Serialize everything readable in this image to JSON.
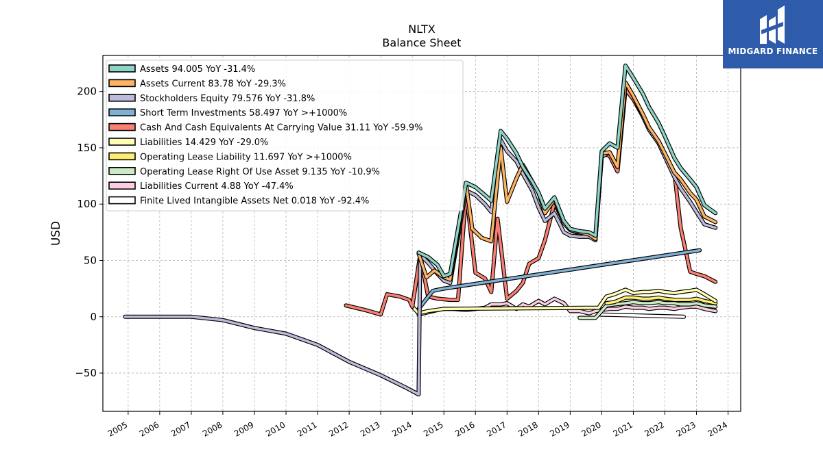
{
  "title_line1": "NLTX",
  "title_line2": "Balance  Sheet",
  "brand": {
    "name": "MIDGARD FINANCE",
    "icon": "midgard-logo-icon",
    "background": "#2f5bab"
  },
  "chart_data": {
    "type": "line",
    "title": "NLTX Balance Sheet",
    "ylabel": "USD",
    "xlabel": "",
    "ylim": [
      -84,
      232
    ],
    "xlim": [
      2004.2,
      2024.4
    ],
    "grid": true,
    "legend_position": "top-left",
    "x_ticks": [
      "2005",
      "2006",
      "2007",
      "2008",
      "2009",
      "2010",
      "2011",
      "2012",
      "2013",
      "2014",
      "2015",
      "2016",
      "2017",
      "2018",
      "2019",
      "2020",
      "2021",
      "2022",
      "2023",
      "2024"
    ],
    "y_ticks": [
      -50,
      0,
      50,
      100,
      150,
      200
    ],
    "y_tick_labels": [
      "−50",
      "0",
      "50",
      "100",
      "150",
      "200"
    ],
    "series": [
      {
        "name": "Assets",
        "legend": "Assets  94.005 YoY -31.4%",
        "color": "#8dd3c7",
        "points": [
          [
            2014.2,
            57
          ],
          [
            2014.5,
            53
          ],
          [
            2014.8,
            46
          ],
          [
            2015.0,
            36
          ],
          [
            2015.2,
            38
          ],
          [
            2015.7,
            119
          ],
          [
            2016.0,
            115
          ],
          [
            2016.3,
            108
          ],
          [
            2016.5,
            103
          ],
          [
            2016.8,
            165
          ],
          [
            2017.0,
            158
          ],
          [
            2017.3,
            145
          ],
          [
            2017.5,
            133
          ],
          [
            2017.8,
            120
          ],
          [
            2018.0,
            110
          ],
          [
            2018.2,
            96
          ],
          [
            2018.5,
            106
          ],
          [
            2018.8,
            85
          ],
          [
            2019.0,
            78
          ],
          [
            2019.3,
            76
          ],
          [
            2019.6,
            75
          ],
          [
            2019.8,
            72
          ],
          [
            2020.0,
            147
          ],
          [
            2020.25,
            154
          ],
          [
            2020.5,
            150
          ],
          [
            2020.75,
            223
          ],
          [
            2021.0,
            212
          ],
          [
            2021.3,
            198
          ],
          [
            2021.5,
            186
          ],
          [
            2021.8,
            172
          ],
          [
            2022.0,
            160
          ],
          [
            2022.3,
            141
          ],
          [
            2022.5,
            132
          ],
          [
            2022.8,
            122
          ],
          [
            2023.0,
            115
          ],
          [
            2023.25,
            99
          ],
          [
            2023.6,
            92
          ]
        ]
      },
      {
        "name": "Assets Current",
        "legend": "Assets Current  83.78 YoY -29.3%",
        "color": "#fdb462",
        "points": [
          [
            2014.2,
            56
          ],
          [
            2014.45,
            35
          ],
          [
            2014.7,
            41
          ],
          [
            2015.0,
            35
          ],
          [
            2015.2,
            33
          ],
          [
            2015.7,
            118
          ],
          [
            2015.9,
            78
          ],
          [
            2016.2,
            70
          ],
          [
            2016.5,
            67
          ],
          [
            2016.8,
            150
          ],
          [
            2017.0,
            102
          ],
          [
            2017.3,
            123
          ],
          [
            2017.5,
            135
          ],
          [
            2017.8,
            120
          ],
          [
            2018.0,
            110
          ],
          [
            2018.2,
            92
          ],
          [
            2018.5,
            104
          ],
          [
            2018.8,
            83
          ],
          [
            2019.0,
            77
          ],
          [
            2019.3,
            75
          ],
          [
            2019.6,
            73
          ],
          [
            2019.8,
            69
          ],
          [
            2020.0,
            145
          ],
          [
            2020.25,
            146
          ],
          [
            2020.5,
            133
          ],
          [
            2020.75,
            208
          ],
          [
            2021.0,
            196
          ],
          [
            2021.3,
            180
          ],
          [
            2021.5,
            168
          ],
          [
            2021.8,
            156
          ],
          [
            2022.0,
            145
          ],
          [
            2022.3,
            128
          ],
          [
            2022.5,
            122
          ],
          [
            2022.8,
            110
          ],
          [
            2023.0,
            104
          ],
          [
            2023.25,
            89
          ],
          [
            2023.6,
            84
          ]
        ]
      },
      {
        "name": "Stockholders Equity",
        "legend": "Stockholders Equity  79.576 YoY -31.8%",
        "color": "#bebada",
        "points": [
          [
            2004.9,
            0
          ],
          [
            2006.0,
            0
          ],
          [
            2007.0,
            0
          ],
          [
            2008.0,
            -3
          ],
          [
            2009.0,
            -10
          ],
          [
            2010.0,
            -15
          ],
          [
            2011.0,
            -25
          ],
          [
            2012.0,
            -40
          ],
          [
            2013.0,
            -52
          ],
          [
            2013.8,
            -63
          ],
          [
            2014.2,
            -69
          ],
          [
            2014.25,
            55
          ],
          [
            2014.5,
            48
          ],
          [
            2014.8,
            38
          ],
          [
            2015.0,
            32
          ],
          [
            2015.2,
            30
          ],
          [
            2015.7,
            112
          ],
          [
            2016.0,
            108
          ],
          [
            2016.3,
            100
          ],
          [
            2016.5,
            93
          ],
          [
            2016.8,
            157
          ],
          [
            2017.0,
            147
          ],
          [
            2017.3,
            138
          ],
          [
            2017.5,
            127
          ],
          [
            2017.8,
            112
          ],
          [
            2018.0,
            97
          ],
          [
            2018.2,
            85
          ],
          [
            2018.5,
            92
          ],
          [
            2018.8,
            75
          ],
          [
            2019.0,
            72
          ],
          [
            2019.3,
            71
          ],
          [
            2019.6,
            71
          ],
          [
            2019.8,
            68
          ],
          [
            2020.0,
            142
          ],
          [
            2020.25,
            146
          ],
          [
            2020.5,
            133
          ],
          [
            2020.75,
            208
          ],
          [
            2021.0,
            196
          ],
          [
            2021.3,
            178
          ],
          [
            2021.5,
            166
          ],
          [
            2021.8,
            154
          ],
          [
            2022.0,
            142
          ],
          [
            2022.3,
            124
          ],
          [
            2022.5,
            114
          ],
          [
            2022.8,
            102
          ],
          [
            2023.0,
            93
          ],
          [
            2023.25,
            82
          ],
          [
            2023.6,
            79
          ]
        ]
      },
      {
        "name": "Short Term Investments",
        "legend": "Short Term Investments  58.497 YoY >+1000%",
        "color": "#80b1d3",
        "points": [
          [
            2014.2,
            7
          ],
          [
            2014.65,
            23
          ],
          [
            2015.0,
            25
          ],
          [
            2023.1,
            59
          ]
        ]
      },
      {
        "name": "Cash And Cash Equivalents At Carrying Value",
        "legend": "Cash And Cash Equivalents At Carrying Value  31.11 YoY -59.9%",
        "color": "#fb8072",
        "points": [
          [
            2011.9,
            10
          ],
          [
            2012.5,
            6
          ],
          [
            2013.0,
            2
          ],
          [
            2013.2,
            20
          ],
          [
            2013.6,
            18
          ],
          [
            2013.9,
            15
          ],
          [
            2014.0,
            9
          ],
          [
            2014.25,
            55
          ],
          [
            2014.5,
            18
          ],
          [
            2014.8,
            16
          ],
          [
            2015.2,
            15
          ],
          [
            2015.45,
            15
          ],
          [
            2015.7,
            111
          ],
          [
            2016.0,
            39
          ],
          [
            2016.3,
            34
          ],
          [
            2016.5,
            22
          ],
          [
            2016.7,
            87
          ],
          [
            2017.0,
            16
          ],
          [
            2017.3,
            23
          ],
          [
            2017.5,
            30
          ],
          [
            2017.7,
            47
          ],
          [
            2018.0,
            52
          ],
          [
            2018.2,
            68
          ],
          [
            2018.5,
            101
          ],
          [
            2018.8,
            84
          ],
          [
            2019.0,
            77
          ],
          [
            2019.3,
            74
          ],
          [
            2019.6,
            72
          ],
          [
            2019.8,
            68
          ],
          [
            2020.0,
            145
          ],
          [
            2020.25,
            143
          ],
          [
            2020.5,
            129
          ],
          [
            2020.75,
            202
          ],
          [
            2021.0,
            193
          ],
          [
            2021.3,
            178
          ],
          [
            2021.5,
            166
          ],
          [
            2021.8,
            156
          ],
          [
            2022.0,
            143
          ],
          [
            2022.3,
            128
          ],
          [
            2022.5,
            79
          ],
          [
            2022.8,
            40
          ],
          [
            2023.0,
            38
          ],
          [
            2023.25,
            36
          ],
          [
            2023.6,
            31
          ]
        ]
      },
      {
        "name": "Liabilities",
        "legend": "Liabilities  14.429 YoY -29.0%",
        "color": "#ffffb3",
        "points": [
          [
            2014.0,
            9
          ],
          [
            2014.2,
            3
          ],
          [
            2014.5,
            5
          ],
          [
            2015.0,
            7
          ],
          [
            2019.9,
            8
          ],
          [
            2020.15,
            18
          ],
          [
            2020.4,
            20
          ],
          [
            2020.75,
            24
          ],
          [
            2021.0,
            21
          ],
          [
            2021.3,
            22
          ],
          [
            2021.5,
            22
          ],
          [
            2021.8,
            23
          ],
          [
            2022.0,
            22
          ],
          [
            2022.3,
            21
          ],
          [
            2022.5,
            22
          ],
          [
            2022.8,
            23
          ],
          [
            2023.0,
            24
          ],
          [
            2023.25,
            20
          ],
          [
            2023.6,
            14
          ]
        ]
      },
      {
        "name": "Operating Lease Liability",
        "legend": "Operating Lease Liability  11.697 YoY >+1000%",
        "color": "#ffed6f",
        "points": [
          [
            2020.15,
            12
          ],
          [
            2020.4,
            13
          ],
          [
            2020.75,
            17
          ],
          [
            2021.0,
            17
          ],
          [
            2021.3,
            16
          ],
          [
            2021.5,
            16
          ],
          [
            2021.8,
            17
          ],
          [
            2022.0,
            16
          ],
          [
            2022.3,
            15
          ],
          [
            2022.5,
            15
          ],
          [
            2022.8,
            15
          ],
          [
            2023.0,
            16
          ],
          [
            2023.25,
            14
          ],
          [
            2023.6,
            12
          ]
        ]
      },
      {
        "name": "Operating Lease Right Of Use Asset",
        "legend": "Operating Lease Right Of Use Asset  9.135 YoY -10.9%",
        "color": "#ccebc5",
        "points": [
          [
            2019.3,
            -1
          ],
          [
            2019.8,
            -1
          ],
          [
            2020.15,
            10
          ],
          [
            2020.4,
            11
          ],
          [
            2020.75,
            12
          ],
          [
            2021.0,
            13
          ],
          [
            2021.3,
            12
          ],
          [
            2021.5,
            12
          ],
          [
            2021.8,
            13
          ],
          [
            2022.0,
            12
          ],
          [
            2022.3,
            12
          ],
          [
            2022.5,
            11
          ],
          [
            2022.8,
            11
          ],
          [
            2023.0,
            12
          ],
          [
            2023.25,
            10
          ],
          [
            2023.6,
            9
          ]
        ]
      },
      {
        "name": "Liabilities Current",
        "legend": "Liabilities Current  4.88 YoY -47.4%",
        "color": "#fccde5",
        "points": [
          [
            2014.2,
            2
          ],
          [
            2014.5,
            4
          ],
          [
            2014.8,
            6
          ],
          [
            2015.0,
            7
          ],
          [
            2015.3,
            7
          ],
          [
            2015.7,
            6
          ],
          [
            2016.0,
            7
          ],
          [
            2016.3,
            8
          ],
          [
            2016.5,
            11
          ],
          [
            2016.8,
            11
          ],
          [
            2017.0,
            12
          ],
          [
            2017.3,
            7
          ],
          [
            2017.5,
            11
          ],
          [
            2017.7,
            9
          ],
          [
            2018.0,
            14
          ],
          [
            2018.2,
            11
          ],
          [
            2018.5,
            16
          ],
          [
            2018.8,
            12
          ],
          [
            2019.0,
            5
          ],
          [
            2019.3,
            5
          ],
          [
            2019.6,
            3
          ],
          [
            2019.8,
            5
          ],
          [
            2020.0,
            6
          ],
          [
            2020.25,
            7
          ],
          [
            2020.5,
            7
          ],
          [
            2020.75,
            9
          ],
          [
            2021.0,
            8
          ],
          [
            2021.3,
            8
          ],
          [
            2021.5,
            7
          ],
          [
            2021.8,
            8
          ],
          [
            2022.0,
            8
          ],
          [
            2022.3,
            7
          ],
          [
            2022.5,
            8
          ],
          [
            2022.8,
            9
          ],
          [
            2023.0,
            9
          ],
          [
            2023.25,
            7
          ],
          [
            2023.6,
            5
          ]
        ]
      },
      {
        "name": "Finite Lived Intangible Assets Net",
        "legend": "Finite Lived Intangible Assets Net  0.018 YoY -92.4%",
        "color": "#ffffff",
        "points": [
          [
            2019.9,
            2
          ],
          [
            2022.6,
            0
          ]
        ]
      }
    ]
  }
}
